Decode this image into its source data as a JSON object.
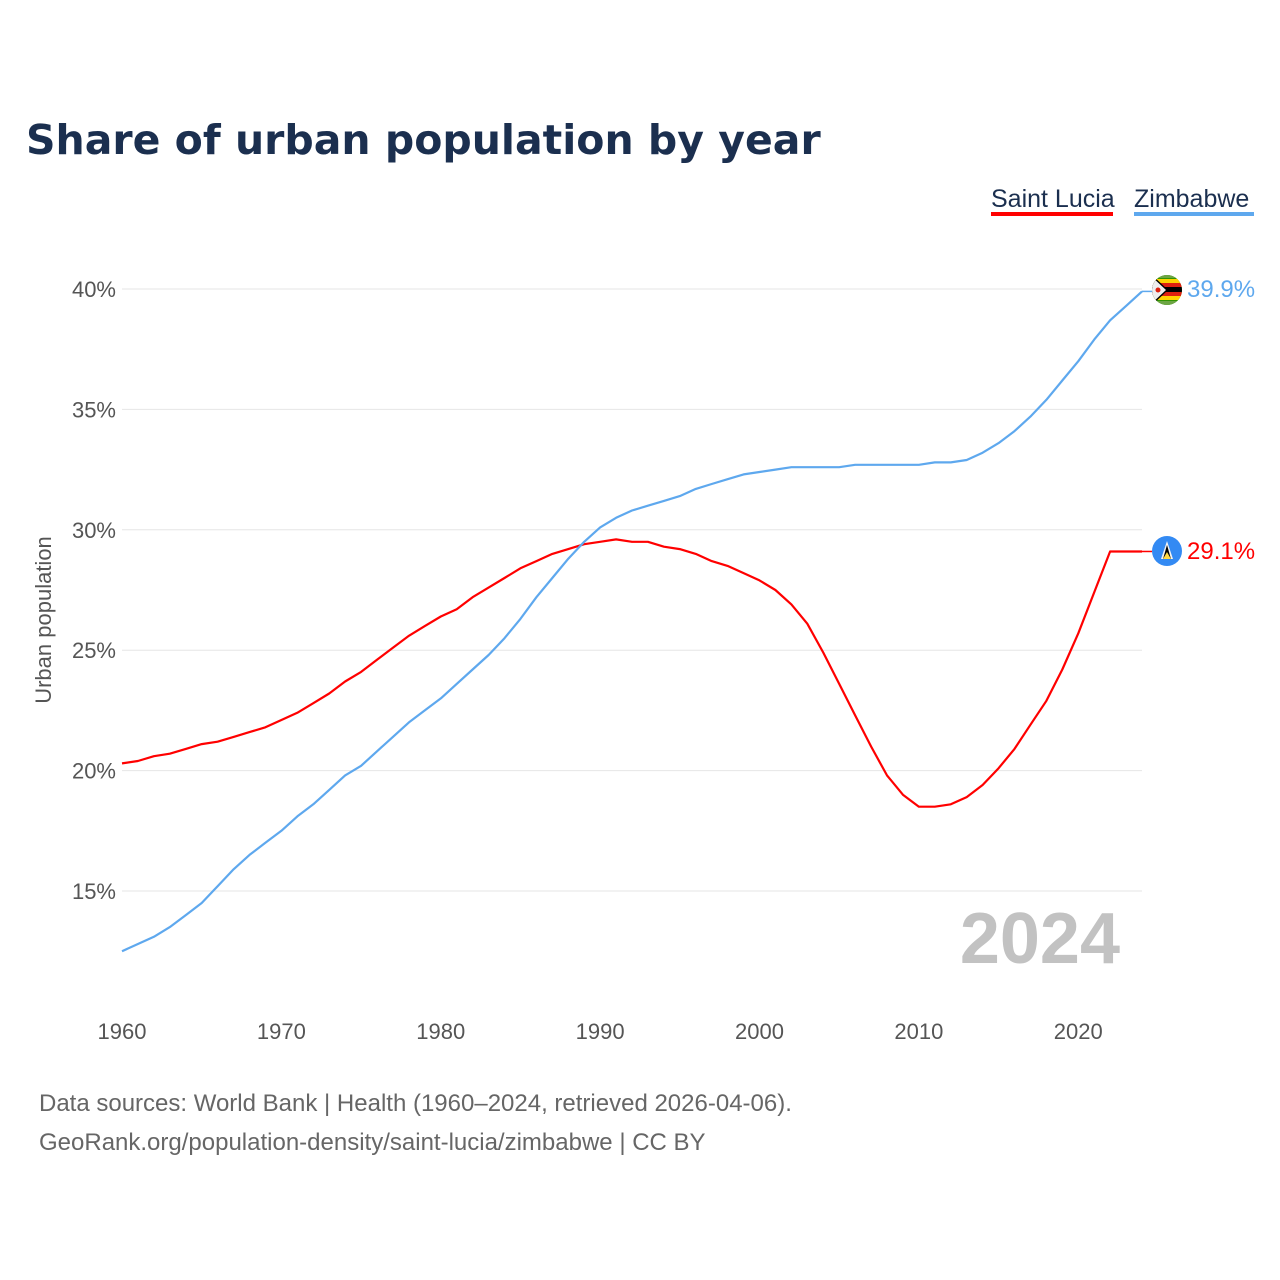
{
  "chart_data": {
    "type": "line",
    "title": "Share of urban population by year",
    "xlabel": "",
    "ylabel": "Urban population",
    "ylim": [
      10,
      42
    ],
    "xlim": [
      1960,
      2024
    ],
    "grid": true,
    "legend_placement": "top-right",
    "y_ticks": [
      15,
      20,
      25,
      30,
      35,
      40
    ],
    "y_tick_labels": [
      "15%",
      "20%",
      "25%",
      "30%",
      "35%",
      "40%"
    ],
    "x_ticks": [
      1960,
      1970,
      1980,
      1990,
      2000,
      2010,
      2020
    ],
    "x_tick_labels": [
      "1960",
      "1970",
      "1980",
      "1990",
      "2000",
      "2010",
      "2020"
    ],
    "year_watermark": "2024",
    "x": [
      1960,
      1961,
      1962,
      1963,
      1964,
      1965,
      1966,
      1967,
      1968,
      1969,
      1970,
      1971,
      1972,
      1973,
      1974,
      1975,
      1976,
      1977,
      1978,
      1979,
      1980,
      1981,
      1982,
      1983,
      1984,
      1985,
      1986,
      1987,
      1988,
      1989,
      1990,
      1991,
      1992,
      1993,
      1994,
      1995,
      1996,
      1997,
      1998,
      1999,
      2000,
      2001,
      2002,
      2003,
      2004,
      2005,
      2006,
      2007,
      2008,
      2009,
      2010,
      2011,
      2012,
      2013,
      2014,
      2015,
      2016,
      2017,
      2018,
      2019,
      2020,
      2021,
      2022,
      2023,
      2024
    ],
    "series": [
      {
        "name": "Saint Lucia",
        "color": "#ff0000",
        "end_label": "29.1%",
        "flag": "saint-lucia-flag",
        "values": [
          20.3,
          20.4,
          20.6,
          20.7,
          20.9,
          21.1,
          21.2,
          21.4,
          21.6,
          21.8,
          22.1,
          22.4,
          22.8,
          23.2,
          23.7,
          24.1,
          24.6,
          25.1,
          25.6,
          26.0,
          26.4,
          26.7,
          27.2,
          27.6,
          28.0,
          28.4,
          28.7,
          29.0,
          29.2,
          29.4,
          29.5,
          29.6,
          29.5,
          29.5,
          29.3,
          29.2,
          29.0,
          28.7,
          28.5,
          28.2,
          27.9,
          27.5,
          26.9,
          26.1,
          24.9,
          23.6,
          22.3,
          21.0,
          19.8,
          19.0,
          18.5,
          18.5,
          18.6,
          18.9,
          19.4,
          20.1,
          20.9,
          21.9,
          22.9,
          24.2,
          25.7,
          27.4,
          29.1,
          29.1,
          29.1
        ]
      },
      {
        "name": "Zimbabwe",
        "color": "#5ea8ee",
        "end_label": "39.9%",
        "flag": "zimbabwe-flag",
        "values": [
          12.5,
          12.8,
          13.1,
          13.5,
          14.0,
          14.5,
          15.2,
          15.9,
          16.5,
          17.0,
          17.5,
          18.1,
          18.6,
          19.2,
          19.8,
          20.2,
          20.8,
          21.4,
          22.0,
          22.5,
          23.0,
          23.6,
          24.2,
          24.8,
          25.5,
          26.3,
          27.2,
          28.0,
          28.8,
          29.5,
          30.1,
          30.5,
          30.8,
          31.0,
          31.2,
          31.4,
          31.7,
          31.9,
          32.1,
          32.3,
          32.4,
          32.5,
          32.6,
          32.6,
          32.6,
          32.6,
          32.7,
          32.7,
          32.7,
          32.7,
          32.7,
          32.8,
          32.8,
          32.9,
          33.2,
          33.6,
          34.1,
          34.7,
          35.4,
          36.2,
          37.0,
          37.9,
          38.7,
          39.3,
          39.9
        ]
      }
    ]
  },
  "footer": {
    "line1": "Data sources: World Bank | Health (1960–2024, retrieved 2026-04-06).",
    "line2": "GeoRank.org/population-density/saint-lucia/zimbabwe | CC BY"
  }
}
